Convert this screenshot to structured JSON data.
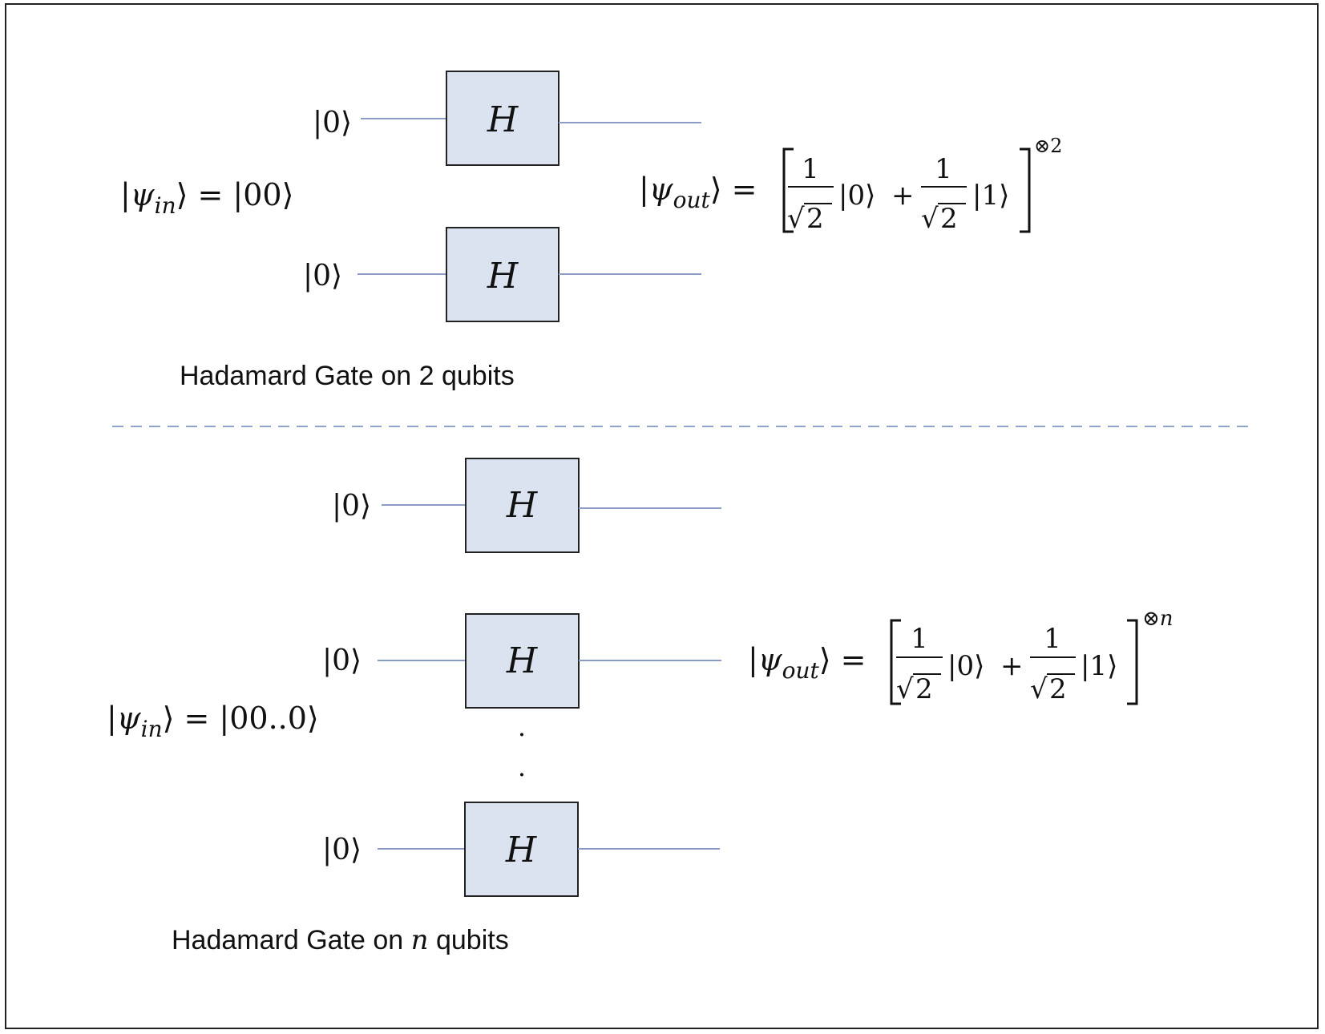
{
  "top": {
    "ket0": "|0⟩",
    "gate_label": "H",
    "input": {
      "psi": "|ψ",
      "sub": "in",
      "rhs": "⟩ = |00⟩"
    },
    "output": {
      "psi": "|ψ",
      "sub": "out",
      "close": "⟩ =",
      "one": "1",
      "sqrt": "√",
      "two": "2",
      "ket_zero": "|0⟩",
      "plus": "+",
      "ket_one": "|1⟩",
      "power": "⊗2"
    },
    "caption": "Hadamard Gate on 2 qubits"
  },
  "bottom": {
    "ket0": "|0⟩",
    "gate_label": "H",
    "dots": ".",
    "input": {
      "psi": "|ψ",
      "sub": "in",
      "rhs": "⟩ = |00..0⟩"
    },
    "output": {
      "psi": "|ψ",
      "sub": "out",
      "close": "⟩ =",
      "one": "1",
      "sqrt": "√",
      "two": "2",
      "ket_zero": "|0⟩",
      "plus": "+",
      "ket_one": "|1⟩",
      "power": "⊗n"
    },
    "caption_prefix": "Hadamard Gate on ",
    "caption_var": "n",
    "caption_suffix": " qubits"
  },
  "colors": {
    "gate_fill": "#dce3f0",
    "gate_stroke": "#222222",
    "wire": "#8a9cc7",
    "divider": "#8fa3cc",
    "text": "#111111"
  }
}
